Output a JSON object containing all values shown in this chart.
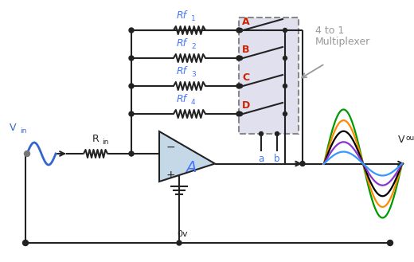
{
  "bg_color": "#ffffff",
  "vin_label": "V",
  "vin_sub": "in",
  "vout_label": "V",
  "vout_sub": "out",
  "rin_label": "R",
  "rin_sub": "in",
  "rf_labels": [
    "Rf",
    "Rf",
    "Rf",
    "Rf"
  ],
  "rf_subs": [
    "1",
    "2",
    "3",
    "4"
  ],
  "node_labels": [
    "A",
    "B",
    "C",
    "D"
  ],
  "mux_line1": "4 to 1",
  "mux_line2": "Multiplexer",
  "ab_labels": [
    "a",
    "b"
  ],
  "opamp_label": "A",
  "gnd_label": "0v",
  "wave_colors": [
    "#009900",
    "#ff8800",
    "#000000",
    "#8833cc",
    "#3399ff"
  ],
  "wave_amplitudes": [
    1.0,
    0.8,
    0.6,
    0.4,
    0.22
  ],
  "line_color": "#222222",
  "blue_color": "#4477ff",
  "vin_color": "#3366cc",
  "red_color": "#cc2200",
  "gray_color": "#999999",
  "opamp_fill": "#c5d8e8",
  "mux_fill": "#e0e0ef",
  "mux_edge": "#888888"
}
